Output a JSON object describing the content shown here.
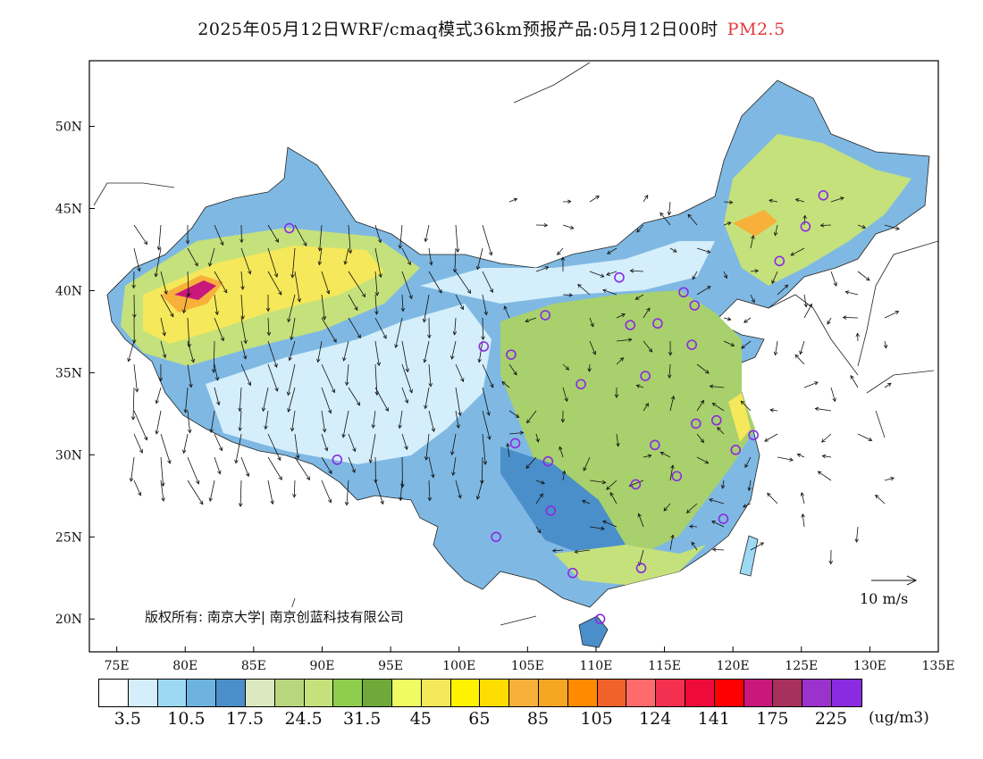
{
  "title": {
    "text": "2025年05月12日WRF/cmaq模式36km预报产品:05月12日00时",
    "pollutant": "PM2.5",
    "pollutant_color": "#e5383b"
  },
  "axes": {
    "lon_labels": [
      "75E",
      "80E",
      "85E",
      "90E",
      "95E",
      "100E",
      "105E",
      "110E",
      "115E",
      "120E",
      "125E",
      "130E",
      "135E"
    ],
    "lat_labels": [
      "50N",
      "45N",
      "40N",
      "35N",
      "30N",
      "25N",
      "20N"
    ],
    "lon_range": [
      73,
      135
    ],
    "lat_range": [
      18,
      54
    ]
  },
  "copyright": "版权所有: 南京大学| 南京创蓝科技有限公司",
  "wind_reference": "10 m/s",
  "colorbar": {
    "colors": [
      "#ffffff",
      "#d4eefb",
      "#9dd9f3",
      "#6eb3e0",
      "#4a8fc9",
      "#dbe8c0",
      "#b8d67e",
      "#c5e17c",
      "#8fcd4e",
      "#6fa93a",
      "#eefb63",
      "#f5e85a",
      "#fff200",
      "#ffdd00",
      "#f7b13b",
      "#f6a623",
      "#ff8a00",
      "#f0622a",
      "#ff6b6b",
      "#f3304f",
      "#ee0a3a",
      "#ff0000",
      "#c9177c",
      "#a8305c",
      "#9a33cc",
      "#8a2be2"
    ],
    "labels": [
      "3.5",
      "10.5",
      "17.5",
      "24.5",
      "31.5",
      "45",
      "65",
      "85",
      "105",
      "124",
      "141",
      "175",
      "225"
    ],
    "units": "(ug/m3)"
  },
  "cities": [
    {
      "lon": 87.6,
      "lat": 43.8
    },
    {
      "lon": 91.1,
      "lat": 29.7
    },
    {
      "lon": 101.8,
      "lat": 36.6
    },
    {
      "lon": 103.8,
      "lat": 36.1
    },
    {
      "lon": 106.3,
      "lat": 38.5
    },
    {
      "lon": 111.7,
      "lat": 40.8
    },
    {
      "lon": 112.5,
      "lat": 37.9
    },
    {
      "lon": 114.5,
      "lat": 38.0
    },
    {
      "lon": 116.4,
      "lat": 39.9
    },
    {
      "lon": 117.2,
      "lat": 39.1
    },
    {
      "lon": 117.0,
      "lat": 36.7
    },
    {
      "lon": 113.6,
      "lat": 34.8
    },
    {
      "lon": 108.9,
      "lat": 34.3
    },
    {
      "lon": 104.1,
      "lat": 30.7
    },
    {
      "lon": 106.5,
      "lat": 29.6
    },
    {
      "lon": 106.7,
      "lat": 26.6
    },
    {
      "lon": 102.7,
      "lat": 25.0
    },
    {
      "lon": 108.3,
      "lat": 22.8
    },
    {
      "lon": 113.3,
      "lat": 23.1
    },
    {
      "lon": 110.3,
      "lat": 20.0
    },
    {
      "lon": 112.9,
      "lat": 28.2
    },
    {
      "lon": 114.3,
      "lat": 30.6
    },
    {
      "lon": 115.9,
      "lat": 28.7
    },
    {
      "lon": 117.3,
      "lat": 31.9
    },
    {
      "lon": 118.8,
      "lat": 32.1
    },
    {
      "lon": 120.2,
      "lat": 30.3
    },
    {
      "lon": 121.5,
      "lat": 31.2
    },
    {
      "lon": 119.3,
      "lat": 26.1
    },
    {
      "lon": 123.4,
      "lat": 41.8
    },
    {
      "lon": 125.3,
      "lat": 43.9
    },
    {
      "lon": 126.6,
      "lat": 45.8
    }
  ]
}
